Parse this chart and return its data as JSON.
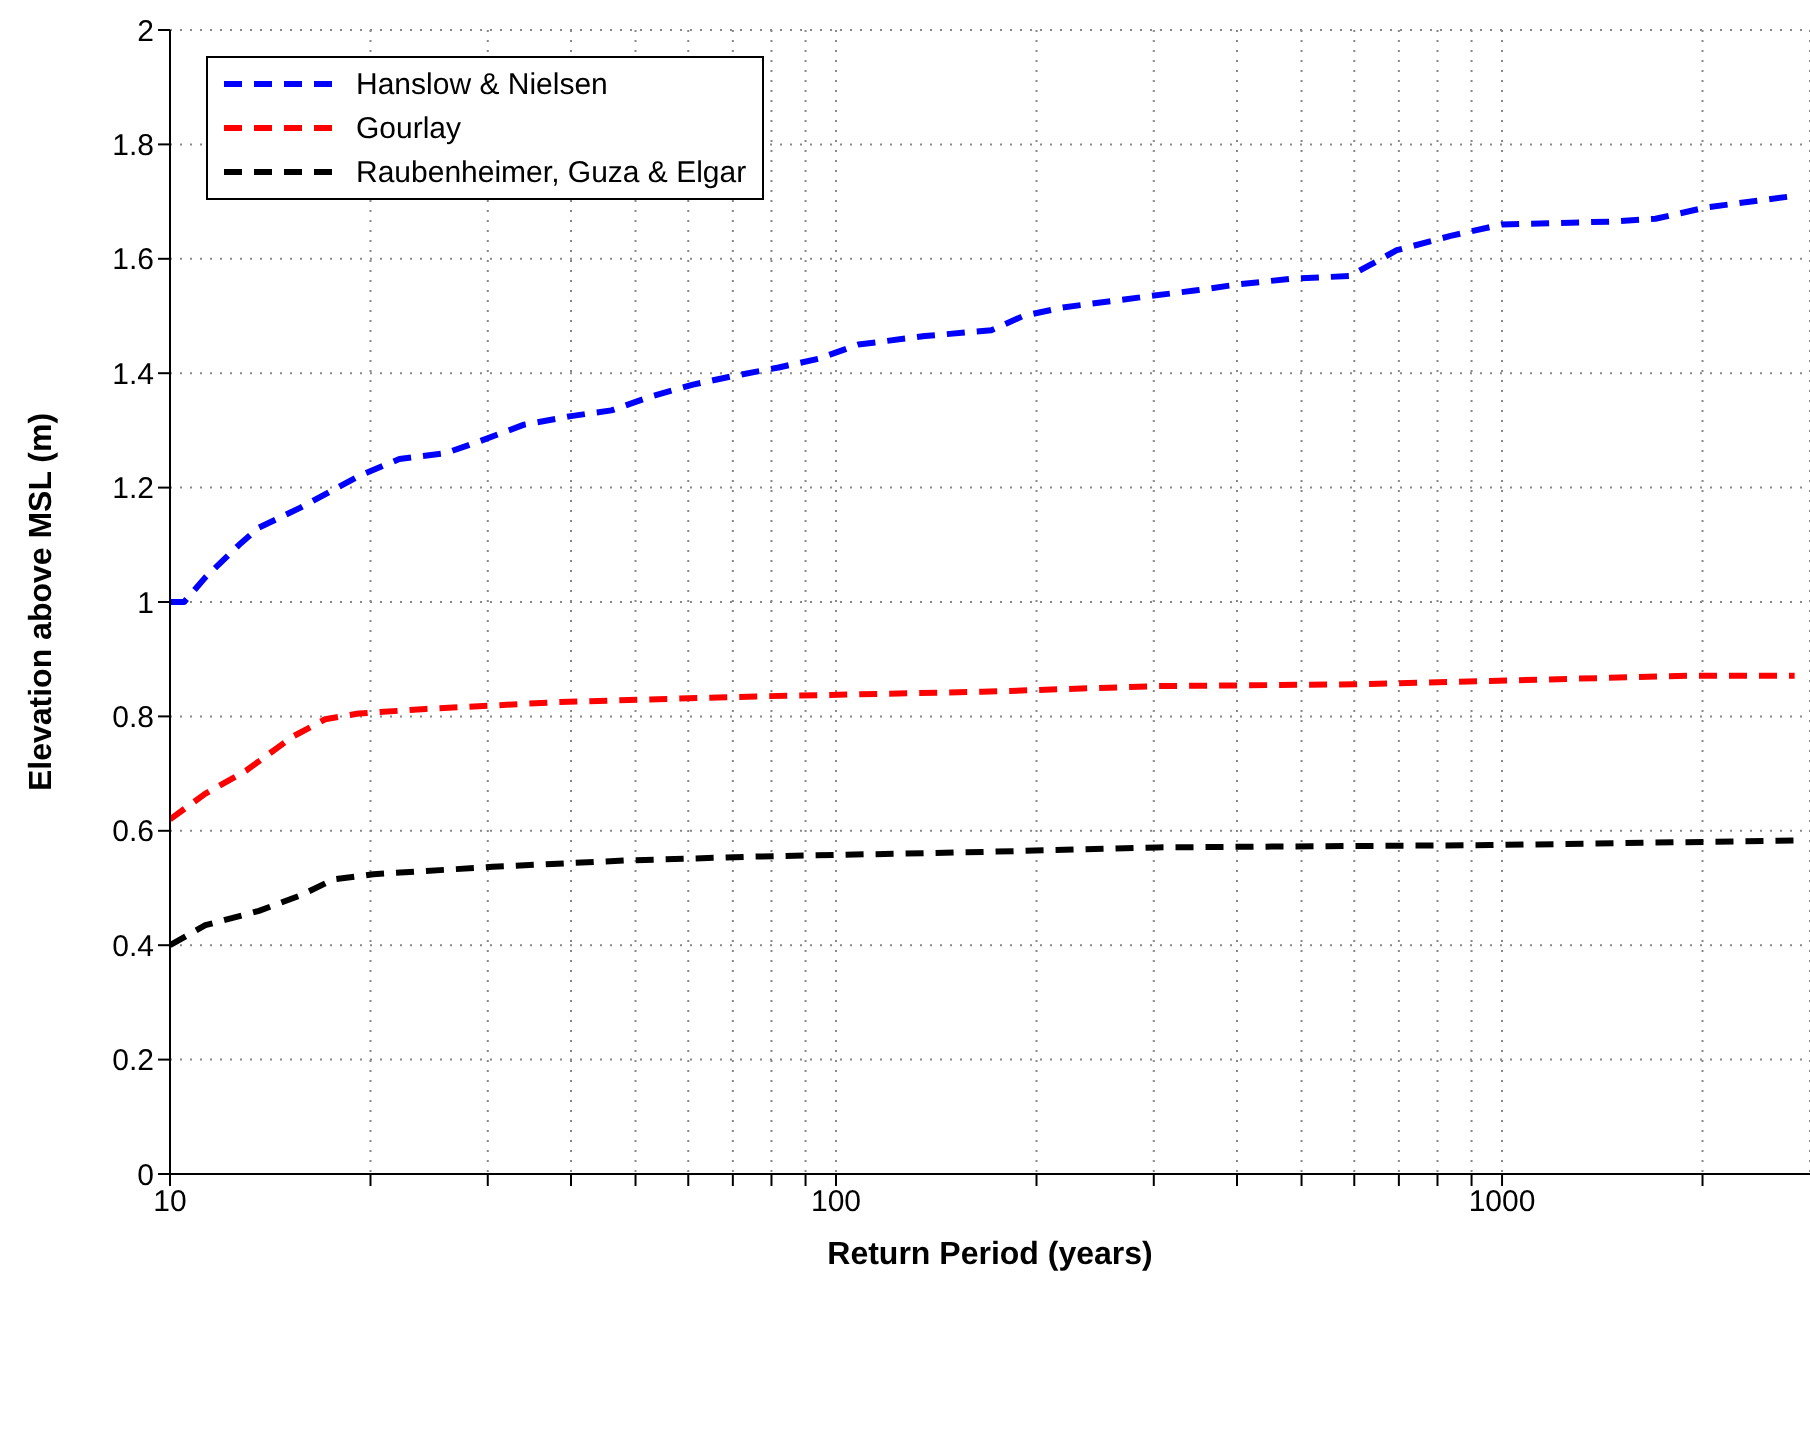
{
  "chart_data": {
    "type": "line",
    "xlabel": "Return Period (years)",
    "ylabel": "Elevation above MSL (m)",
    "log": "x",
    "xlim": [
      10,
      2900
    ],
    "ylim": [
      0,
      2
    ],
    "xticks": [
      10,
      {
        "value": 20,
        "label": null
      },
      {
        "value": 30,
        "label": null
      },
      {
        "value": 40,
        "label": null
      },
      {
        "value": 50,
        "label": null
      },
      {
        "value": 60,
        "label": null
      },
      {
        "value": 70,
        "label": null
      },
      {
        "value": 80,
        "label": null
      },
      {
        "value": 90,
        "label": null
      },
      100,
      {
        "value": 200,
        "label": null
      },
      {
        "value": 300,
        "label": null
      },
      {
        "value": 400,
        "label": null
      },
      {
        "value": 500,
        "label": null
      },
      {
        "value": 600,
        "label": null
      },
      {
        "value": 700,
        "label": null
      },
      {
        "value": 800,
        "label": null
      },
      {
        "value": 900,
        "label": null
      },
      1000,
      {
        "value": 2000,
        "label": null
      }
    ],
    "yticks": [
      0,
      0.2,
      0.4,
      0.6,
      0.8,
      1,
      1.2,
      1.4,
      1.6,
      1.8,
      2
    ],
    "grid": true,
    "legend": "top left",
    "marker": "none",
    "line_style": "dashed",
    "series": [
      {
        "name": "Hanslow & Nielsen",
        "color": "#0000ff",
        "x": [
          10,
          10.5,
          11.3,
          12.7,
          13.6,
          15.7,
          19.2,
          22.1,
          25.9,
          29,
          34,
          40,
          46,
          53,
          61,
          70,
          82,
          94,
          108,
          136,
          171,
          191,
          219,
          297,
          348,
          400,
          481,
          591,
          695,
          837,
          1000,
          1450,
          1700,
          2030,
          2750
        ],
        "values": [
          1.0,
          1.0,
          1.043,
          1.1,
          1.13,
          1.165,
          1.22,
          1.25,
          1.26,
          1.28,
          1.31,
          1.325,
          1.335,
          1.36,
          1.38,
          1.395,
          1.41,
          1.425,
          1.45,
          1.465,
          1.475,
          1.5,
          1.515,
          1.535,
          1.545,
          1.555,
          1.565,
          1.57,
          1.615,
          1.64,
          1.66,
          1.665,
          1.67,
          1.69,
          1.71
        ]
      },
      {
        "name": "Gourlay",
        "color": "#ff0000",
        "x": [
          10,
          11.3,
          13,
          15.3,
          17.1,
          19.2,
          24.2,
          38.3,
          76,
          166,
          303,
          600,
          959,
          1900,
          2750
        ],
        "values": [
          0.62,
          0.665,
          0.705,
          0.765,
          0.795,
          0.805,
          0.813,
          0.825,
          0.835,
          0.843,
          0.853,
          0.856,
          0.862,
          0.871,
          0.871
        ]
      },
      {
        "name": "Raubenheimer, Guza & Elgar",
        "color": "#000000",
        "x": [
          10,
          11.3,
          13.6,
          15.7,
          17.6,
          20.2,
          30.5,
          48,
          76,
          166,
          303,
          959,
          2750
        ],
        "values": [
          0.4,
          0.435,
          0.46,
          0.487,
          0.515,
          0.524,
          0.537,
          0.548,
          0.555,
          0.563,
          0.571,
          0.575,
          0.583
        ]
      }
    ]
  }
}
